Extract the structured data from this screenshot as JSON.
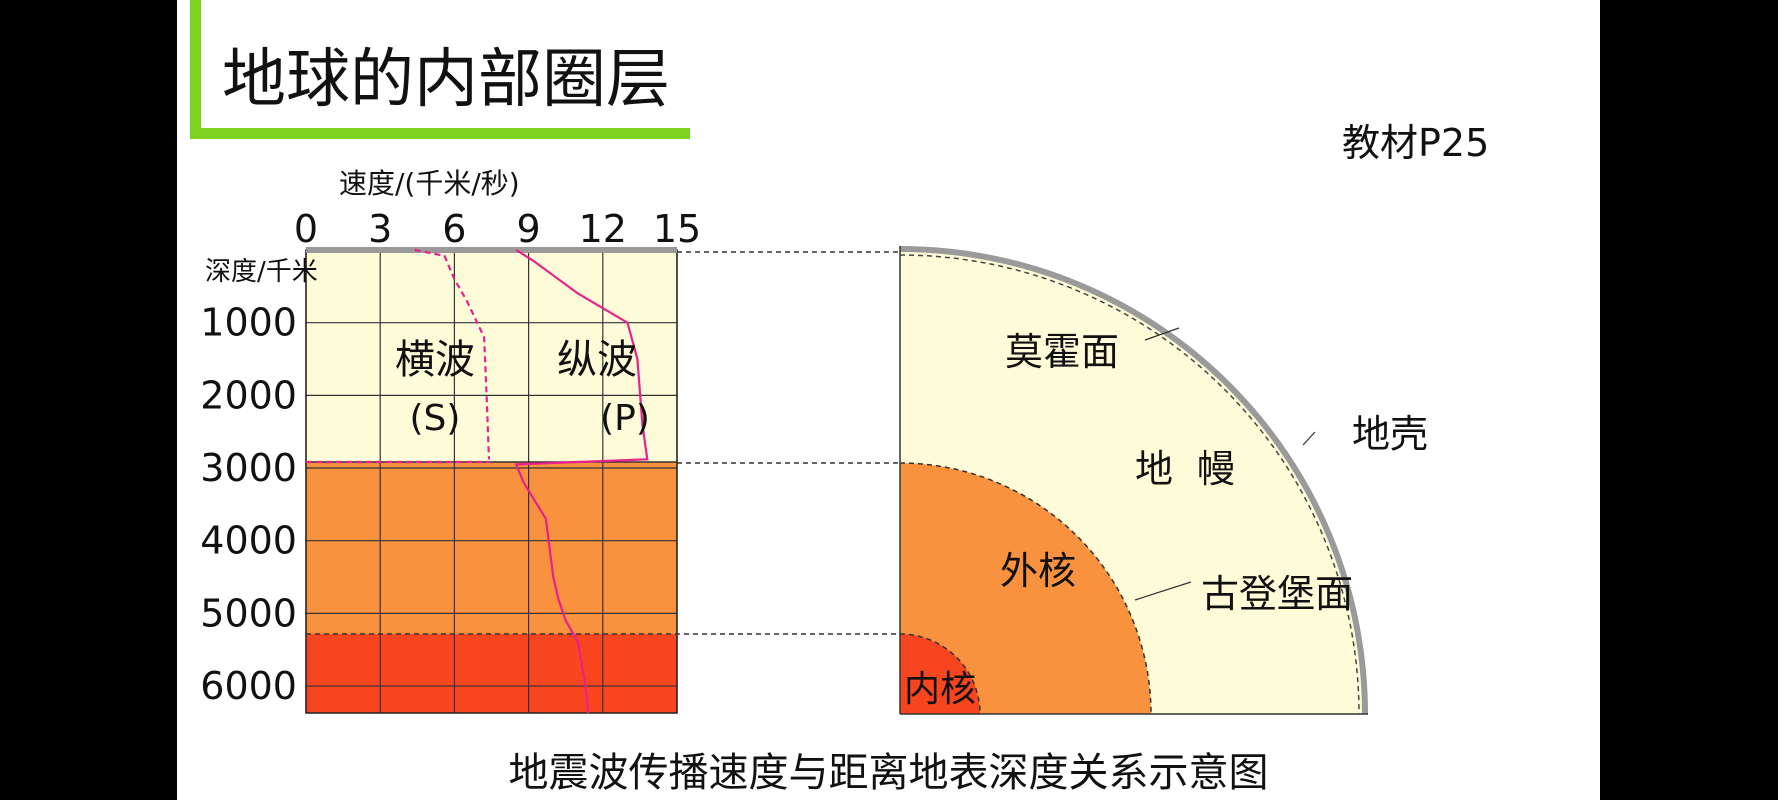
{
  "title": "地球的内部圈层",
  "reference": "教材P25",
  "caption": "地震波传播速度与距离地表深度关系示意图",
  "chart": {
    "x_axis_title": "速度/(千米/秒)",
    "y_axis_title": "深度/千米",
    "x_ticks": [
      "0",
      "3",
      "6",
      "9",
      "12",
      "15"
    ],
    "y_ticks": [
      "1000",
      "2000",
      "3000",
      "4000",
      "5000",
      "6000"
    ],
    "s_wave_label": "横波",
    "s_wave_symbol": "(S)",
    "p_wave_label": "纵波",
    "p_wave_symbol": "(P)"
  },
  "chart_data": {
    "type": "line",
    "xlim": [
      0,
      15
    ],
    "ylim": [
      0,
      6371
    ],
    "y_inverted": true,
    "boundaries_depth_km": [
      2900,
      5150
    ],
    "series": [
      {
        "name": "横波",
        "points": [
          [
            4.4,
            0
          ],
          [
            5.6,
            80
          ],
          [
            6.0,
            400
          ],
          [
            6.5,
            700
          ],
          [
            7.2,
            1200
          ],
          [
            7.3,
            2000
          ],
          [
            7.4,
            2880
          ]
        ]
      },
      {
        "name": "纵波",
        "points": [
          [
            8.5,
            0
          ],
          [
            9.2,
            150
          ],
          [
            11.0,
            600
          ],
          [
            13.0,
            1000
          ],
          [
            13.4,
            1500
          ],
          [
            13.6,
            2400
          ],
          [
            13.8,
            2880
          ],
          [
            8.5,
            2950
          ],
          [
            8.8,
            3200
          ],
          [
            9.7,
            3700
          ],
          [
            10.0,
            4500
          ],
          [
            10.2,
            4800
          ],
          [
            10.5,
            5100
          ],
          [
            11.0,
            5400
          ],
          [
            11.3,
            6000
          ],
          [
            11.4,
            6371
          ]
        ]
      }
    ],
    "layer_colors": {
      "mantle": "#fefcd8",
      "outer_core": "#f9923e",
      "inner_core": "#f7461f",
      "crust": "#9a9a9a"
    }
  },
  "section": {
    "moho": "莫霍面",
    "crust": "地壳",
    "mantle": "地  幔",
    "outer_core": "外核",
    "gutenberg": "古登堡面",
    "inner_core": "内核"
  }
}
